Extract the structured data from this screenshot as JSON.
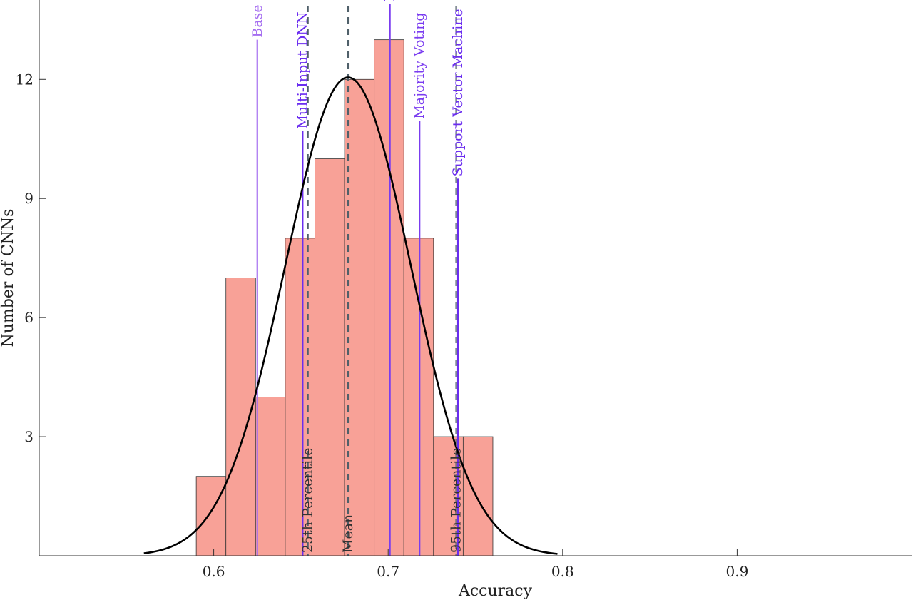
{
  "chart_data": {
    "type": "bar",
    "title": "",
    "xlabel": "Accuracy",
    "ylabel": "Number of CNNs",
    "xlim": [
      0.5,
      1.0
    ],
    "ylim": [
      0,
      14
    ],
    "x_ticks": [
      0.6,
      0.7,
      0.8,
      0.9
    ],
    "x_tick_labels": [
      "0.6",
      "0.7",
      "0.8",
      "0.9"
    ],
    "y_ticks": [
      3,
      6,
      9,
      12
    ],
    "y_tick_labels": [
      "3",
      "6",
      "9",
      "12"
    ],
    "grid": false,
    "bar_color": "#f8a197",
    "bar_edge_color": "#333333",
    "histogram_bins": [
      {
        "start": 0.59,
        "end": 0.607,
        "count": 2
      },
      {
        "start": 0.607,
        "end": 0.624,
        "count": 7
      },
      {
        "start": 0.624,
        "end": 0.641,
        "count": 4
      },
      {
        "start": 0.641,
        "end": 0.658,
        "count": 8
      },
      {
        "start": 0.658,
        "end": 0.675,
        "count": 10
      },
      {
        "start": 0.675,
        "end": 0.692,
        "count": 12
      },
      {
        "start": 0.692,
        "end": 0.709,
        "count": 13
      },
      {
        "start": 0.709,
        "end": 0.726,
        "count": 8
      },
      {
        "start": 0.726,
        "end": 0.743,
        "count": 3
      },
      {
        "start": 0.743,
        "end": 0.76,
        "count": 3
      }
    ],
    "fit_curve": {
      "mean": 0.677,
      "std": 0.036,
      "peak": 12.05,
      "x_range": [
        0.56,
        0.797
      ],
      "color": "#000000"
    },
    "reference_lines": [
      {
        "label": "Base Network",
        "x": 0.625,
        "top": 13.0,
        "style": "solid",
        "color": "#a56ef0"
      },
      {
        "label": "Multi-Input DNN",
        "x": 0.651,
        "top": 10.7,
        "style": "solid",
        "color": "#6a2cf0"
      },
      {
        "label": "Decision Tree",
        "x": 0.701,
        "top": 13.9,
        "style": "solid",
        "color": "#7a3cf0"
      },
      {
        "label": "Majority Voting",
        "x": 0.718,
        "top": 10.95,
        "style": "solid",
        "color": "#7a3cf0"
      },
      {
        "label": "Support Vector Machine",
        "x": 0.74,
        "top": 9.5,
        "style": "solid",
        "color": "#6a2cf0"
      }
    ],
    "statistic_lines": [
      {
        "label": "25th Percentile",
        "x": 0.654,
        "style": "dashed",
        "color": "#50606a"
      },
      {
        "label": "Mean",
        "x": 0.677,
        "style": "dashed",
        "color": "#50606a"
      },
      {
        "label": "95th Percentile",
        "x": 0.739,
        "style": "dashed",
        "color": "#50606a"
      }
    ]
  }
}
